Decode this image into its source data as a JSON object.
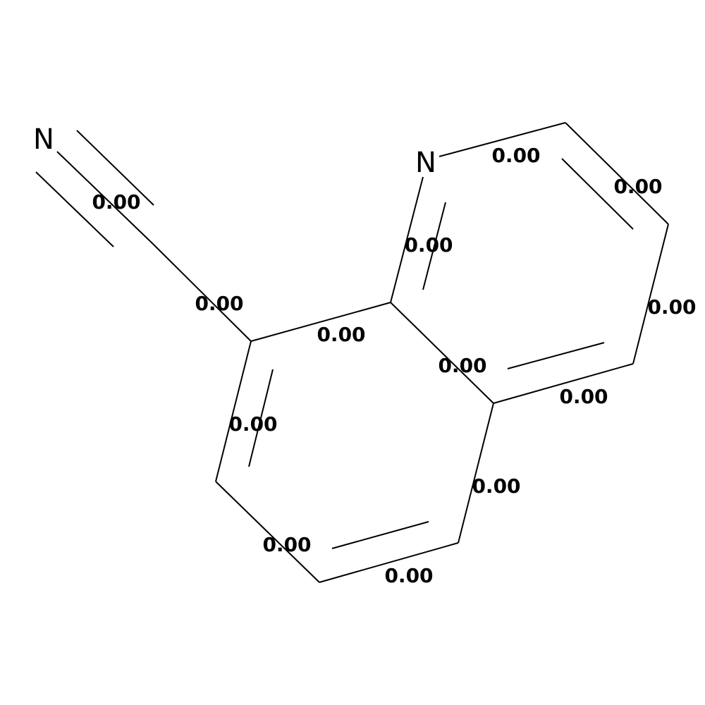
{
  "atoms": [
    {
      "symbol": "N"
    },
    {
      "symbol": "N"
    }
  ],
  "bond_labels": [
    "0.00",
    "0.00",
    "0.00",
    "0.00",
    "0.00",
    "0.00",
    "0.00",
    "0.00",
    "0.00",
    "0.00",
    "0.00",
    "0.00",
    "0.00"
  ]
}
